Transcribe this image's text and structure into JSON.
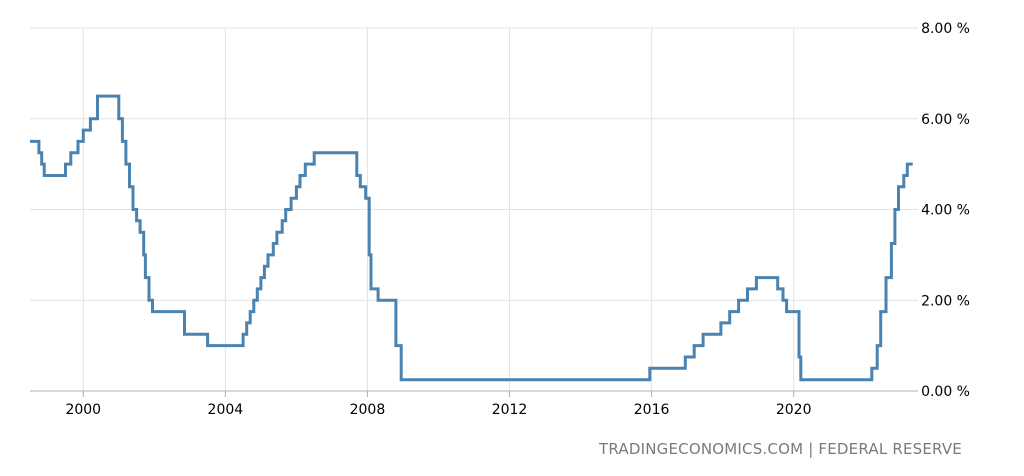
{
  "source_text": "TRADINGECONOMICS.COM | FEDERAL RESERVE",
  "colors": {
    "line": "#4a82b0",
    "grid": "#e3e3e3",
    "axis": "#b0b0b0",
    "text": "#000000",
    "source": "#7a7a7a"
  },
  "chart_data": {
    "type": "line",
    "step": true,
    "title": "",
    "xlabel": "",
    "ylabel": "",
    "grid": true,
    "xlim": [
      1998.5,
      2023.5
    ],
    "ylim": [
      0,
      8
    ],
    "y_axis_side": "right",
    "x_ticks": [
      2000,
      2004,
      2008,
      2012,
      2016,
      2020
    ],
    "x_tick_labels": [
      "2000",
      "2004",
      "2008",
      "2012",
      "2016",
      "2020"
    ],
    "y_ticks": [
      0,
      2,
      4,
      6,
      8
    ],
    "y_tick_labels": [
      "0.00 %",
      "2.00 %",
      "4.00 %",
      "6.00 %",
      "8.00 %"
    ],
    "series": [
      {
        "x": [
          1998.5,
          1998.75,
          1998.83,
          1998.9,
          1999.5,
          1999.65,
          1999.85,
          2000.0,
          2000.2,
          2000.4,
          2001.0,
          2001.1,
          2001.2,
          2001.3,
          2001.4,
          2001.5,
          2001.6,
          2001.7,
          2001.75,
          2001.85,
          2001.95,
          2002.85,
          2003.5,
          2004.5,
          2004.6,
          2004.7,
          2004.8,
          2004.9,
          2005.0,
          2005.1,
          2005.2,
          2005.35,
          2005.45,
          2005.6,
          2005.7,
          2005.85,
          2006.0,
          2006.1,
          2006.25,
          2006.5,
          2007.7,
          2007.8,
          2007.95,
          2008.05,
          2008.1,
          2008.3,
          2008.8,
          2008.95,
          2015.95,
          2016.95,
          2017.2,
          2017.45,
          2017.95,
          2018.2,
          2018.45,
          2018.7,
          2018.95,
          2019.55,
          2019.7,
          2019.8,
          2020.15,
          2020.2,
          2022.2,
          2022.35,
          2022.45,
          2022.6,
          2022.75,
          2022.85,
          2022.95,
          2023.1,
          2023.2,
          2023.35
        ],
        "y": [
          5.5,
          5.25,
          5.0,
          4.75,
          5.0,
          5.25,
          5.5,
          5.75,
          6.0,
          6.5,
          6.0,
          5.5,
          5.0,
          4.5,
          4.0,
          3.75,
          3.5,
          3.0,
          2.5,
          2.0,
          1.75,
          1.25,
          1.0,
          1.25,
          1.5,
          1.75,
          2.0,
          2.25,
          2.5,
          2.75,
          3.0,
          3.25,
          3.5,
          3.75,
          4.0,
          4.25,
          4.5,
          4.75,
          5.0,
          5.25,
          4.75,
          4.5,
          4.25,
          3.0,
          2.25,
          2.0,
          1.0,
          0.25,
          0.5,
          0.75,
          1.0,
          1.25,
          1.5,
          1.75,
          2.0,
          2.25,
          2.5,
          2.25,
          2.0,
          1.75,
          0.75,
          0.25,
          0.5,
          1.0,
          1.75,
          2.5,
          3.25,
          4.0,
          4.5,
          4.75,
          5.0,
          5.0
        ]
      }
    ]
  }
}
